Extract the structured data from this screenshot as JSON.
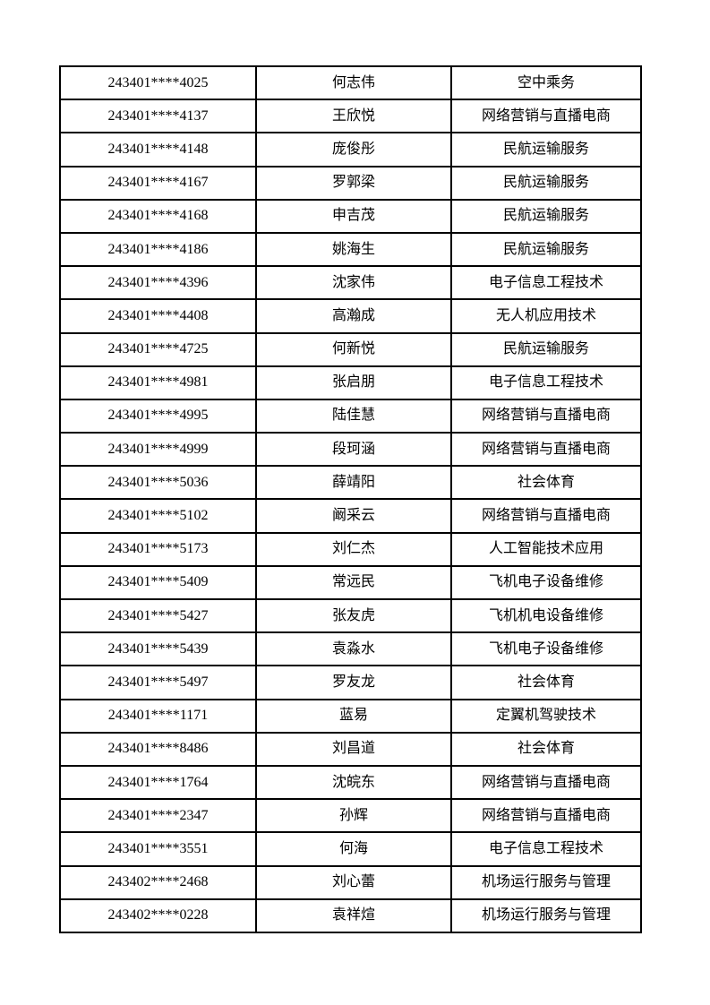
{
  "page": {
    "background_color": "#ffffff",
    "text_color": "#000000",
    "table_border_color": "#000000"
  },
  "table": {
    "columns": [
      {
        "key": "student_id",
        "cell_name": "student-id-cell"
      },
      {
        "key": "name",
        "cell_name": "name-cell"
      },
      {
        "key": "major",
        "cell_name": "major-cell"
      }
    ],
    "rows": [
      [
        "243401****4025",
        "何志伟",
        "空中乘务"
      ],
      [
        "243401****4137",
        "王欣悦",
        "网络营销与直播电商"
      ],
      [
        "243401****4148",
        "庞俊彤",
        "民航运输服务"
      ],
      [
        "243401****4167",
        "罗郭梁",
        "民航运输服务"
      ],
      [
        "243401****4168",
        "申吉茂",
        "民航运输服务"
      ],
      [
        "243401****4186",
        "姚海生",
        "民航运输服务"
      ],
      [
        "243401****4396",
        "沈家伟",
        "电子信息工程技术"
      ],
      [
        "243401****4408",
        "高瀚成",
        "无人机应用技术"
      ],
      [
        "243401****4725",
        "何新悦",
        "民航运输服务"
      ],
      [
        "243401****4981",
        "张启朋",
        "电子信息工程技术"
      ],
      [
        "243401****4995",
        "陆佳慧",
        "网络营销与直播电商"
      ],
      [
        "243401****4999",
        "段珂涵",
        "网络营销与直播电商"
      ],
      [
        "243401****5036",
        "薛靖阳",
        "社会体育"
      ],
      [
        "243401****5102",
        "阚采云",
        "网络营销与直播电商"
      ],
      [
        "243401****5173",
        "刘仁杰",
        "人工智能技术应用"
      ],
      [
        "243401****5409",
        "常远民",
        "飞机电子设备维修"
      ],
      [
        "243401****5427",
        "张友虎",
        "飞机机电设备维修"
      ],
      [
        "243401****5439",
        "袁淼水",
        "飞机电子设备维修"
      ],
      [
        "243401****5497",
        "罗友龙",
        "社会体育"
      ],
      [
        "243401****1171",
        "蓝易",
        "定翼机驾驶技术"
      ],
      [
        "243401****8486",
        "刘昌道",
        "社会体育"
      ],
      [
        "243401****1764",
        "沈皖东",
        "网络营销与直播电商"
      ],
      [
        "243401****2347",
        "孙辉",
        "网络营销与直播电商"
      ],
      [
        "243401****3551",
        "何海",
        "电子信息工程技术"
      ],
      [
        "243402****2468",
        "刘心蕾",
        "机场运行服务与管理"
      ],
      [
        "243402****0228",
        "袁祥煊",
        "机场运行服务与管理"
      ]
    ]
  }
}
